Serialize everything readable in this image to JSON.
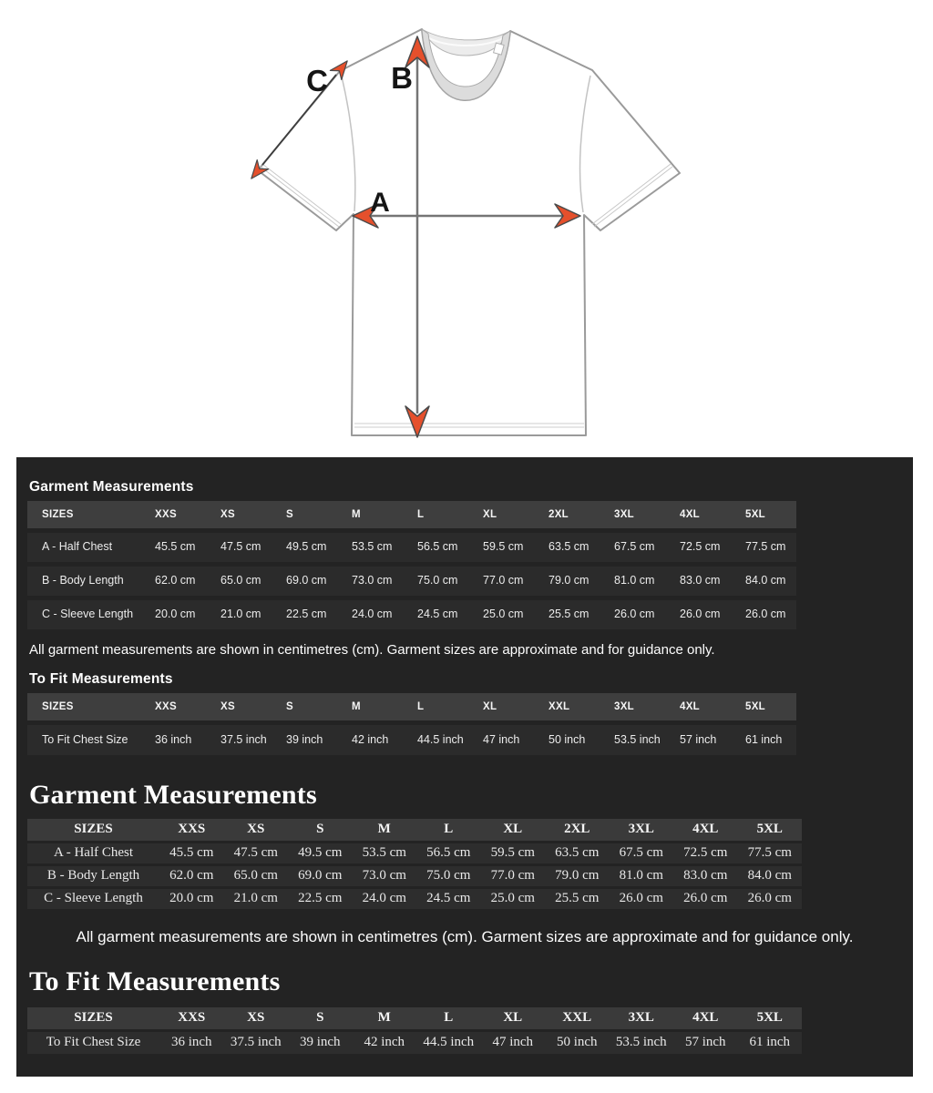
{
  "diagram": {
    "label_a": "A",
    "label_b": "B",
    "label_c": "C",
    "arrow_color": "#e5502c",
    "outline_color": "#9a9a9a"
  },
  "tables": {
    "garment": {
      "headers": [
        "SIZES",
        "XXS",
        "XS",
        "S",
        "M",
        "L",
        "XL",
        "2XL",
        "3XL",
        "4XL",
        "5XL"
      ],
      "rows": [
        {
          "label": "A - Half Chest",
          "values": [
            "45.5 cm",
            "47.5 cm",
            "49.5 cm",
            "53.5 cm",
            "56.5 cm",
            "59.5 cm",
            "63.5 cm",
            "67.5 cm",
            "72.5 cm",
            "77.5 cm"
          ]
        },
        {
          "label": "B - Body Length",
          "values": [
            "62.0 cm",
            "65.0 cm",
            "69.0 cm",
            "73.0 cm",
            "75.0 cm",
            "77.0 cm",
            "79.0 cm",
            "81.0 cm",
            "83.0 cm",
            "84.0 cm"
          ]
        },
        {
          "label": "C - Sleeve Length",
          "values": [
            "20.0 cm",
            "21.0 cm",
            "22.5 cm",
            "24.0 cm",
            "24.5 cm",
            "25.0 cm",
            "25.5 cm",
            "26.0 cm",
            "26.0 cm",
            "26.0 cm"
          ]
        }
      ]
    },
    "tofit": {
      "headers": [
        "SIZES",
        "XXS",
        "XS",
        "S",
        "M",
        "L",
        "XL",
        "XXL",
        "3XL",
        "4XL",
        "5XL"
      ],
      "rows": [
        {
          "label": "To Fit Chest Size",
          "values": [
            "36 inch",
            "37.5 inch",
            "39 inch",
            "42 inch",
            "44.5 inch",
            "47 inch",
            "50 inch",
            "53.5 inch",
            "57 inch",
            "61 inch"
          ]
        }
      ]
    }
  },
  "compact": {
    "garment_heading": "Garment Measurements",
    "note": "All garment measurements are shown in centimetres (cm). Garment sizes are approximate and for guidance only.",
    "tofit_heading": "To Fit Measurements"
  },
  "large": {
    "garment_heading": "Garment Measurements",
    "note": "All garment measurements are shown in centimetres (cm). Garment sizes are approximate and for guidance only.",
    "tofit_heading": "To Fit Measurements"
  }
}
